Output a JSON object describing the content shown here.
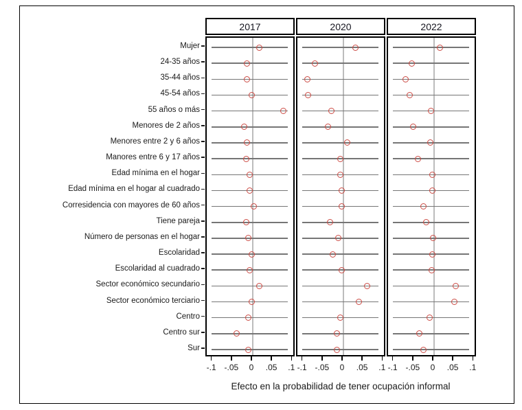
{
  "chart_data": {
    "type": "scatter",
    "variant": "coefficient-dot-plot",
    "title": "",
    "xlabel": "Efecto en la probabilidad de tener ocupación informal",
    "ylabel": "",
    "legend": "none",
    "grid": "vertical-zero-line-only",
    "xlim": [
      -0.115,
      0.108
    ],
    "x_ticks": [
      {
        "label": "-.1",
        "value": -0.1
      },
      {
        "label": "-.05",
        "value": -0.05
      },
      {
        "label": "0",
        "value": 0
      },
      {
        "label": ".05",
        "value": 0.05
      },
      {
        "label": ".1",
        "value": 0.1
      }
    ],
    "categories": [
      "Mujer",
      "24-35 años",
      "35-44 años",
      "45-54 años",
      "55 años o más",
      "Menores de 2 años",
      "Menores entre 2 y 6 años",
      "Manores entre 6 y 17 años",
      "Edad mínima en el hogar",
      "Edad mínima en el hogar al cuadrado",
      "Corresidencia con mayores de 60 años",
      "Tiene pareja",
      "Número de personas en el hogar",
      "Escolaridad",
      "Escolaridad al cuadrado",
      "Sector económico secundario",
      "Sector económico terciario",
      "Centro",
      "Centro sur",
      "Sur"
    ],
    "series": [
      {
        "name": "2017",
        "values": [
          0.017,
          -0.014,
          -0.014,
          -0.002,
          0.077,
          -0.022,
          -0.014,
          -0.016,
          -0.008,
          -0.007,
          0.002,
          -0.017,
          -0.012,
          -0.003,
          -0.007,
          0.017,
          -0.002,
          -0.011,
          -0.04,
          -0.011
        ]
      },
      {
        "name": "2020",
        "values": [
          0.03,
          -0.072,
          -0.09,
          -0.089,
          -0.03,
          -0.038,
          0.009,
          -0.007,
          -0.007,
          -0.005,
          -0.005,
          -0.033,
          -0.013,
          -0.026,
          -0.005,
          0.06,
          0.039,
          -0.008,
          -0.016,
          -0.017
        ]
      },
      {
        "name": "2022",
        "values": [
          0.015,
          -0.056,
          -0.071,
          -0.061,
          -0.007,
          -0.052,
          -0.01,
          -0.041,
          -0.005,
          -0.005,
          -0.026,
          -0.019,
          -0.002,
          -0.005,
          -0.006,
          0.054,
          0.051,
          -0.012,
          -0.037,
          -0.026
        ]
      }
    ],
    "colors": {
      "marker": "#cb4a43",
      "row_line": "#757575",
      "zero_line": "#bcbcbc",
      "border": "#000000",
      "text": "#1a1a1a"
    }
  }
}
